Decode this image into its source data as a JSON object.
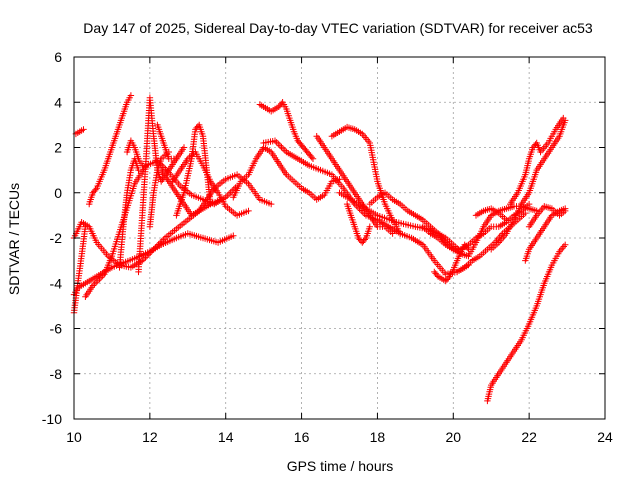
{
  "chart_data": {
    "type": "scatter",
    "title": "Day 147 of 2025, Sidereal Day-to-day VTEC variation (SDTVAR) for receiver ac53",
    "xlabel": "GPS time / hours",
    "ylabel": "SDTVAR / TECUs",
    "xlim": [
      10,
      24
    ],
    "ylim": [
      -10,
      6
    ],
    "xticks": [
      10,
      12,
      14,
      16,
      18,
      20,
      22,
      24
    ],
    "yticks": [
      -10,
      -8,
      -6,
      -4,
      -2,
      0,
      2,
      4,
      6
    ],
    "grid": true,
    "marker": "+",
    "color": "#ff0000",
    "series": [
      {
        "name": "trace-1",
        "x": [
          10.0,
          10.1,
          10.3,
          10.5,
          10.8,
          11.0,
          11.3,
          11.6,
          12.0,
          12.3,
          12.7,
          13.0,
          13.4,
          13.8,
          14.2
        ],
        "y": [
          -4.5,
          -4.2,
          -4.0,
          -3.8,
          -3.5,
          -3.3,
          -3.1,
          -2.9,
          -2.6,
          -2.3,
          -2.0,
          -1.8,
          -2.0,
          -2.2,
          -1.9
        ]
      },
      {
        "name": "trace-2",
        "x": [
          10.0,
          10.2,
          10.4,
          10.6,
          10.9,
          11.2,
          11.5,
          11.8,
          12.1,
          12.4,
          12.7,
          13.0,
          13.3,
          13.6,
          13.9
        ],
        "y": [
          -2.0,
          -1.3,
          -1.5,
          -2.2,
          -2.8,
          -3.2,
          -3.3,
          -3.0,
          -2.5,
          -2.0,
          -1.6,
          -1.2,
          -0.8,
          -0.5,
          -0.3
        ]
      },
      {
        "name": "trace-3",
        "x": [
          10.0,
          10.1,
          10.2,
          10.3
        ],
        "y": [
          -5.3,
          -4.0,
          -2.8,
          -1.5
        ]
      },
      {
        "name": "trace-4",
        "x": [
          10.05,
          10.15,
          10.25
        ],
        "y": [
          2.6,
          2.7,
          2.8
        ]
      },
      {
        "name": "trace-5",
        "x": [
          10.4,
          10.5,
          10.6,
          10.8,
          11.0,
          11.2,
          11.4,
          11.5
        ],
        "y": [
          -0.5,
          0.0,
          0.2,
          1.0,
          2.0,
          3.0,
          4.0,
          4.3
        ]
      },
      {
        "name": "trace-6",
        "x": [
          10.3,
          10.5,
          10.8,
          11.0,
          11.3,
          11.6,
          11.9,
          12.2,
          12.5,
          12.8,
          13.1,
          13.4,
          13.7,
          14.0,
          14.3
        ],
        "y": [
          -4.6,
          -4.1,
          -3.6,
          -2.8,
          -1.2,
          0.4,
          1.2,
          1.4,
          0.9,
          0.3,
          -0.1,
          -0.3,
          -0.5,
          -0.2,
          0.3
        ]
      },
      {
        "name": "trace-7",
        "x": [
          11.4,
          11.5,
          11.6,
          11.7,
          11.8
        ],
        "y": [
          1.8,
          2.3,
          2.0,
          1.5,
          1.2
        ]
      },
      {
        "name": "trace-8",
        "x": [
          11.7,
          11.8,
          11.9,
          12.0,
          12.1,
          12.2,
          12.3,
          12.5,
          12.7,
          12.9
        ],
        "y": [
          -3.5,
          -1.0,
          1.5,
          4.2,
          2.5,
          1.0,
          0.5,
          1.0,
          1.5,
          2.0
        ]
      },
      {
        "name": "trace-9",
        "x": [
          11.2,
          11.3,
          11.4,
          11.5,
          11.6,
          11.7
        ],
        "y": [
          -3.3,
          -1.5,
          0.0,
          1.0,
          1.5,
          1.0
        ]
      },
      {
        "name": "trace-10",
        "x": [
          12.0,
          12.1,
          12.2,
          12.3,
          12.5
        ],
        "y": [
          -1.5,
          0.0,
          1.0,
          1.5,
          1.8
        ]
      },
      {
        "name": "trace-11",
        "x": [
          12.2,
          12.3,
          12.4,
          12.5,
          12.7
        ],
        "y": [
          3.0,
          2.5,
          2.0,
          1.5,
          1.5
        ]
      },
      {
        "name": "trace-12",
        "x": [
          12.3,
          12.5,
          12.7,
          12.9,
          13.1,
          13.3,
          13.5,
          13.7,
          14.0,
          14.3,
          14.6,
          14.9,
          15.2
        ],
        "y": [
          1.0,
          0.5,
          0.0,
          -0.5,
          -1.0,
          -0.8,
          -0.3,
          0.2,
          0.6,
          0.8,
          0.4,
          -0.3,
          -0.5
        ]
      },
      {
        "name": "trace-13",
        "x": [
          12.6,
          12.8,
          13.0,
          13.2,
          13.4,
          13.6,
          13.8,
          14.0,
          14.3,
          14.6
        ],
        "y": [
          0.5,
          1.0,
          1.5,
          1.8,
          1.2,
          0.5,
          0.0,
          -0.6,
          -1.0,
          -0.8
        ]
      },
      {
        "name": "trace-14",
        "x": [
          12.7,
          12.9,
          13.1,
          13.2,
          13.3,
          13.4,
          13.5,
          13.6
        ],
        "y": [
          -1.0,
          0.0,
          1.5,
          2.8,
          3.0,
          2.5,
          1.0,
          -0.5
        ]
      },
      {
        "name": "trace-15",
        "x": [
          14.2,
          14.4,
          14.6,
          14.8,
          15.0,
          15.2,
          15.4,
          15.6,
          15.8,
          16.0,
          16.2,
          16.4,
          16.6,
          16.8,
          17.0
        ],
        "y": [
          -0.2,
          0.5,
          0.8,
          1.5,
          2.0,
          1.8,
          1.3,
          0.8,
          0.5,
          0.2,
          0.0,
          -0.3,
          -0.1,
          0.5,
          0.6
        ]
      },
      {
        "name": "trace-16",
        "x": [
          14.9,
          15.0,
          15.1,
          15.2,
          15.3,
          15.4,
          15.5,
          15.6,
          15.7,
          15.8,
          15.9,
          16.0,
          16.1,
          16.2,
          16.3
        ],
        "y": [
          3.9,
          3.8,
          3.7,
          3.6,
          3.7,
          3.8,
          4.0,
          3.7,
          3.2,
          2.7,
          2.3,
          2.1,
          1.9,
          1.7,
          1.5
        ]
      },
      {
        "name": "trace-17",
        "x": [
          15.0,
          15.3,
          15.6,
          15.9,
          16.2,
          16.5,
          16.8,
          17.1,
          17.4,
          17.7,
          18.0,
          18.3,
          18.6,
          18.9,
          19.2,
          19.5,
          19.8,
          20.1,
          20.4
        ],
        "y": [
          2.2,
          2.3,
          1.8,
          1.5,
          1.2,
          1.0,
          0.8,
          0.2,
          -0.5,
          -1.0,
          -1.2,
          -1.5,
          -1.8,
          -2.0,
          -2.3,
          -3.0,
          -3.6,
          -3.5,
          -3.2
        ]
      },
      {
        "name": "trace-18",
        "x": [
          16.4,
          16.6,
          16.8,
          17.0,
          17.2,
          17.4,
          17.6,
          17.8,
          18.0,
          18.2,
          18.4
        ],
        "y": [
          2.5,
          2.0,
          1.5,
          1.0,
          0.5,
          0.0,
          -0.5,
          -1.0,
          -1.5,
          -1.5,
          -1.8
        ]
      },
      {
        "name": "trace-19",
        "x": [
          16.8,
          17.0,
          17.2,
          17.4,
          17.6,
          17.8,
          18.0,
          18.2,
          18.4,
          18.6
        ],
        "y": [
          2.5,
          2.7,
          2.9,
          2.8,
          2.6,
          2.2,
          0.5,
          -0.5,
          -1.2,
          -1.8
        ]
      },
      {
        "name": "trace-20",
        "x": [
          17.2,
          17.4,
          17.5,
          17.6,
          17.7,
          17.8
        ],
        "y": [
          -0.5,
          -1.5,
          -2.0,
          -2.2,
          -2.0,
          -1.5
        ]
      },
      {
        "name": "trace-21",
        "x": [
          17.0,
          17.5,
          18.0,
          18.5,
          19.0,
          19.3,
          19.6,
          19.8,
          20.0,
          20.2
        ],
        "y": [
          0.0,
          -0.5,
          -1.0,
          -1.3,
          -1.5,
          -1.6,
          -1.8,
          -2.0,
          -2.3,
          -2.6
        ]
      },
      {
        "name": "trace-22",
        "x": [
          17.8,
          18.0,
          18.2,
          18.4,
          18.6,
          18.8,
          19.0,
          19.2,
          19.4,
          19.6,
          19.8,
          20.0,
          20.2,
          20.4
        ],
        "y": [
          -0.5,
          -0.2,
          0.0,
          -0.3,
          -0.5,
          -0.8,
          -1.0,
          -1.2,
          -1.5,
          -1.8,
          -2.2,
          -2.5,
          -2.7,
          -2.8
        ]
      },
      {
        "name": "trace-23",
        "x": [
          19.5,
          19.6,
          19.7,
          19.8,
          19.9,
          20.0,
          20.1,
          20.2,
          20.3,
          20.4
        ],
        "y": [
          -3.5,
          -3.7,
          -3.8,
          -3.9,
          -3.7,
          -3.4,
          -3.0,
          -2.6,
          -2.3,
          -2.5
        ]
      },
      {
        "name": "trace-24",
        "x": [
          19.2,
          19.4,
          19.6,
          19.8,
          20.0,
          20.2,
          20.4,
          20.6,
          20.8,
          21.0,
          21.2,
          21.4,
          21.6,
          21.8,
          22.0
        ],
        "y": [
          -1.5,
          -1.8,
          -2.0,
          -2.3,
          -2.5,
          -2.5,
          -2.3,
          -2.0,
          -1.8,
          -1.5,
          -1.5,
          -1.3,
          -1.0,
          -0.8,
          -0.5
        ]
      },
      {
        "name": "trace-25",
        "x": [
          20.4,
          20.6,
          20.8,
          21.0,
          21.2,
          21.4,
          21.6,
          21.8,
          22.0,
          22.2
        ],
        "y": [
          -2.8,
          -2.2,
          -1.5,
          -1.0,
          -0.8,
          -0.7,
          -0.6,
          -0.6,
          -0.7,
          -0.8
        ]
      },
      {
        "name": "trace-26",
        "x": [
          20.1,
          20.3,
          20.5,
          20.7,
          20.9,
          21.1,
          21.3,
          21.5,
          21.7,
          21.9
        ],
        "y": [
          -3.5,
          -3.3,
          -3.0,
          -2.8,
          -2.5,
          -2.2,
          -1.8,
          -1.5,
          -1.2,
          -0.9
        ]
      },
      {
        "name": "trace-27",
        "x": [
          20.6,
          20.8,
          21.0,
          21.2,
          21.4
        ],
        "y": [
          -1.0,
          -0.8,
          -0.7,
          -0.9,
          -1.2
        ]
      },
      {
        "name": "trace-28",
        "x": [
          21.0,
          21.2,
          21.4,
          21.6,
          21.8,
          22.0,
          22.2,
          22.4,
          22.6,
          22.8,
          22.95
        ],
        "y": [
          -2.5,
          -2.2,
          -1.8,
          -1.2,
          -0.5,
          0.0,
          1.0,
          1.5,
          2.0,
          2.5,
          3.2
        ]
      },
      {
        "name": "trace-29",
        "x": [
          21.5,
          21.7,
          21.9,
          22.0,
          22.1,
          22.2,
          22.3,
          22.5,
          22.7,
          22.9
        ],
        "y": [
          -0.5,
          0.0,
          0.8,
          1.5,
          2.0,
          2.2,
          1.8,
          2.2,
          2.8,
          3.3
        ]
      },
      {
        "name": "trace-30",
        "x": [
          21.9,
          22.0,
          22.2,
          22.4,
          22.6,
          22.8,
          22.95
        ],
        "y": [
          -3.0,
          -2.5,
          -2.0,
          -1.5,
          -1.0,
          -0.8,
          -0.7
        ]
      },
      {
        "name": "trace-31",
        "x": [
          22.0,
          22.2,
          22.4,
          22.6,
          22.8,
          22.95
        ],
        "y": [
          -1.5,
          -1.0,
          -0.6,
          -0.7,
          -1.0,
          -0.8
        ]
      },
      {
        "name": "trace-32",
        "x": [
          20.9,
          21.0,
          21.2,
          21.4,
          21.6,
          21.8,
          22.0,
          22.2,
          22.4,
          22.6,
          22.8,
          22.95
        ],
        "y": [
          -9.2,
          -8.5,
          -8.0,
          -7.5,
          -7.0,
          -6.5,
          -5.8,
          -5.0,
          -4.0,
          -3.2,
          -2.6,
          -2.3
        ]
      }
    ]
  }
}
